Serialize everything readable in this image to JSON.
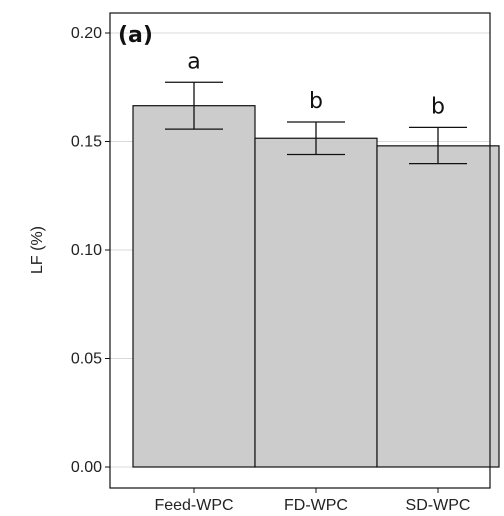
{
  "chart_data": {
    "type": "bar",
    "panel_label": "(a)",
    "categories": [
      "Feed-WPC",
      "FD-WPC",
      "SD-WPC"
    ],
    "values": [
      0.1665,
      0.1515,
      0.148
    ],
    "error_low": [
      0.1557,
      0.144,
      0.1398
    ],
    "error_high": [
      0.1773,
      0.159,
      0.1565
    ],
    "significance": [
      "a",
      "b",
      "b"
    ],
    "ylabel": "LF (%)",
    "xlabel": "",
    "ylim": [
      0,
      0.2
    ],
    "yticks": [
      0.0,
      0.05,
      0.1,
      0.15,
      0.2
    ],
    "ytick_labels": [
      "0.00",
      "0.05",
      "0.10",
      "0.15",
      "0.20"
    ],
    "grid": true,
    "colors": {
      "bar_fill": "#cccccc",
      "bar_stroke": "#111111",
      "grid": "#d9d9d9",
      "axis": "#111111"
    }
  }
}
